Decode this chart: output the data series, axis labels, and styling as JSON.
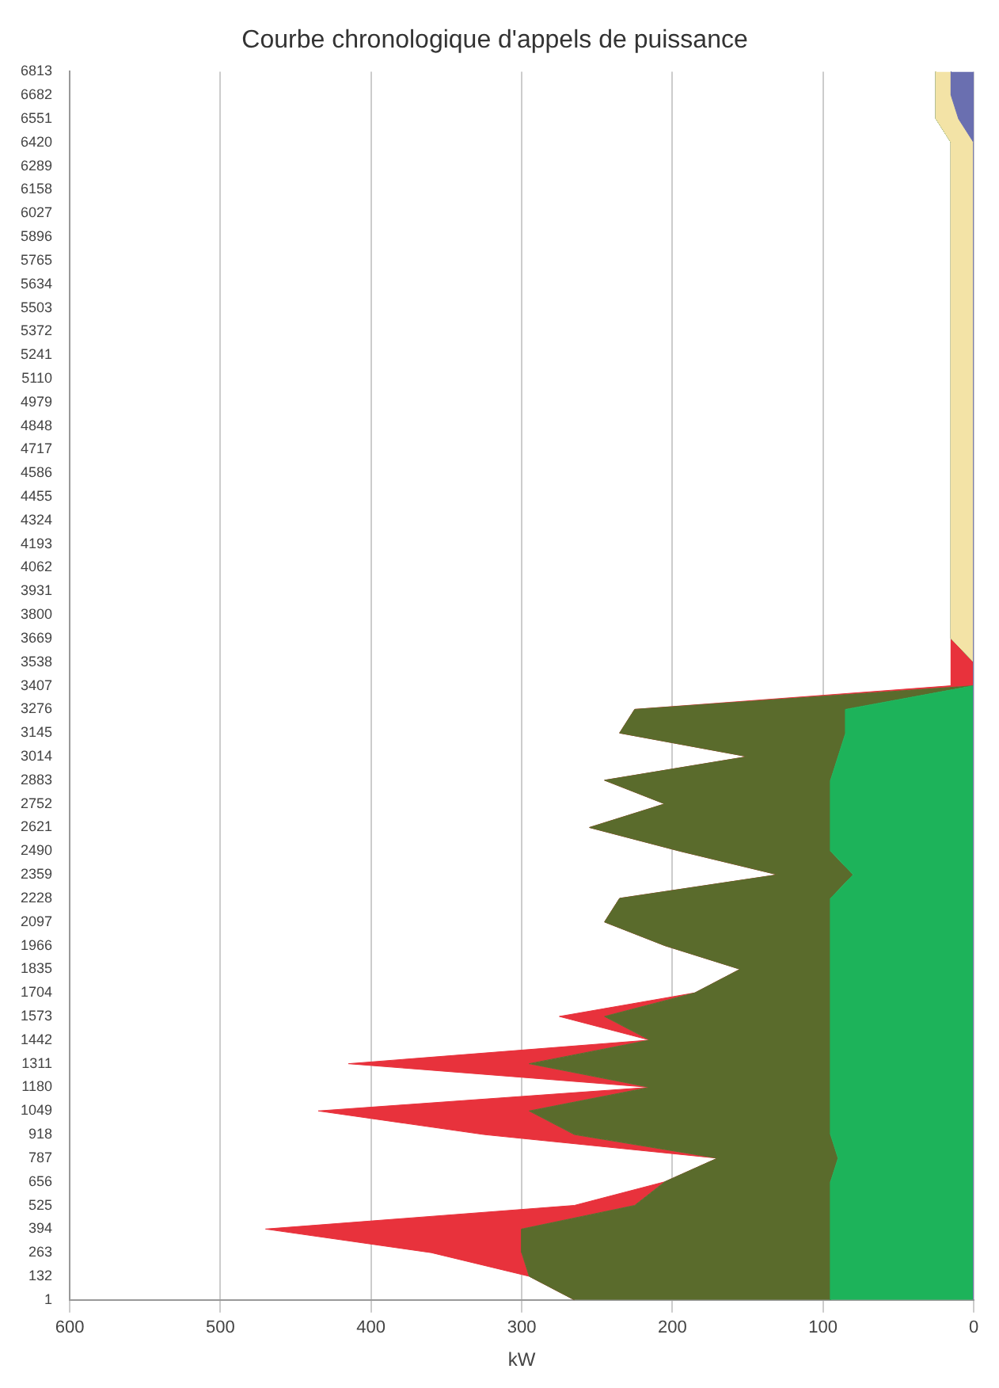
{
  "chart_data": {
    "type": "area",
    "title": "Courbe chronologique d'appels de puissance",
    "xlabel": "kW",
    "orientation": "horizontal",
    "stacked": true,
    "grid": "x",
    "legend": false,
    "marker": "none",
    "categories": [
      "6813",
      "6682",
      "6551",
      "6420",
      "6289",
      "6158",
      "6027",
      "5896",
      "5765",
      "5634",
      "5503",
      "5372",
      "5241",
      "5110",
      "4979",
      "4848",
      "4717",
      "4586",
      "4455",
      "4324",
      "4193",
      "4062",
      "3931",
      "3800",
      "3669",
      "3538",
      "3407",
      "3276",
      "3145",
      "3014",
      "2883",
      "2752",
      "2621",
      "2490",
      "2359",
      "2228",
      "2097",
      "1966",
      "1835",
      "1704",
      "1573",
      "1442",
      "1311",
      "1180",
      "1049",
      "918",
      "787",
      "656",
      "525",
      "394",
      "263",
      "132",
      "1"
    ],
    "series": [
      {
        "color": "#6a6fb0",
        "values": [
          15,
          15,
          10,
          0,
          0,
          0,
          0,
          0,
          0,
          0,
          0,
          0,
          0,
          0,
          0,
          0,
          0,
          0,
          0,
          0,
          0,
          0,
          0,
          0,
          0,
          0,
          0,
          0,
          0,
          0,
          0,
          0,
          0,
          0,
          0,
          0,
          0,
          0,
          0,
          0,
          0,
          0,
          0,
          0,
          0,
          0,
          0,
          0,
          0,
          0,
          0,
          0,
          0
        ]
      },
      {
        "color": "#f3e3a6",
        "values": [
          10,
          10,
          15,
          15,
          15,
          15,
          15,
          15,
          15,
          15,
          15,
          15,
          15,
          15,
          15,
          15,
          15,
          15,
          15,
          15,
          15,
          15,
          15,
          15,
          15,
          0,
          0,
          0,
          0,
          0,
          0,
          0,
          0,
          0,
          0,
          0,
          0,
          0,
          0,
          0,
          0,
          0,
          0,
          0,
          0,
          0,
          0,
          0,
          0,
          0,
          0,
          0,
          0
        ]
      },
      {
        "color": "#1db35a",
        "values": [
          0,
          0,
          0,
          0,
          0,
          0,
          0,
          0,
          0,
          0,
          0,
          0,
          0,
          0,
          0,
          0,
          0,
          0,
          0,
          0,
          0,
          0,
          0,
          0,
          0,
          0,
          0,
          85,
          85,
          90,
          95,
          95,
          95,
          95,
          80,
          95,
          95,
          95,
          95,
          95,
          95,
          95,
          95,
          95,
          95,
          95,
          90,
          95,
          95,
          95,
          95,
          95,
          95
        ]
      },
      {
        "color": "#5a6b2c",
        "values": [
          0,
          0,
          0,
          0,
          0,
          0,
          0,
          0,
          0,
          0,
          0,
          0,
          0,
          0,
          0,
          0,
          0,
          0,
          0,
          0,
          0,
          0,
          0,
          0,
          0,
          0,
          0,
          140,
          150,
          60,
          150,
          110,
          160,
          100,
          50,
          140,
          150,
          110,
          60,
          90,
          150,
          120,
          200,
          120,
          200,
          170,
          80,
          110,
          130,
          205,
          205,
          200,
          170
        ]
      },
      {
        "color": "#e8323c",
        "values": [
          0,
          0,
          0,
          0,
          0,
          0,
          0,
          0,
          0,
          0,
          0,
          0,
          0,
          0,
          0,
          0,
          0,
          0,
          0,
          0,
          0,
          0,
          0,
          0,
          0,
          15,
          15,
          0,
          0,
          0,
          0,
          0,
          0,
          0,
          0,
          0,
          0,
          0,
          0,
          0,
          30,
          0,
          120,
          0,
          140,
          60,
          0,
          0,
          40,
          170,
          60,
          0,
          0
        ]
      }
    ],
    "xlim": [
      600,
      0
    ],
    "xticks": [
      0,
      100,
      200,
      300,
      400,
      500,
      600
    ]
  }
}
